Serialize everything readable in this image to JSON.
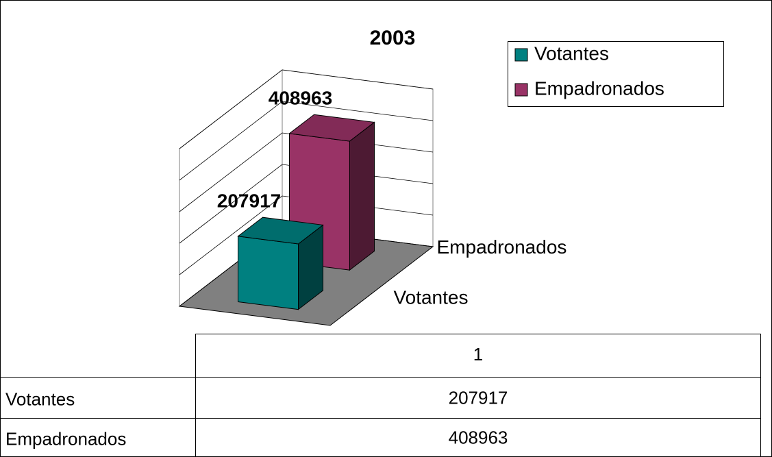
{
  "chart_data": {
    "type": "bar3d",
    "title": "2003",
    "categories": [
      "1"
    ],
    "series": [
      {
        "name": "Votantes",
        "color": "#008080",
        "values": [
          207917
        ]
      },
      {
        "name": "Empadronados",
        "color": "#993366",
        "values": [
          408963
        ]
      }
    ],
    "ylim": [
      0,
      500000
    ],
    "yticks": [
      0,
      100000,
      200000,
      300000,
      400000,
      500000
    ],
    "grid": true,
    "legend": "top-right",
    "data_table": true
  }
}
